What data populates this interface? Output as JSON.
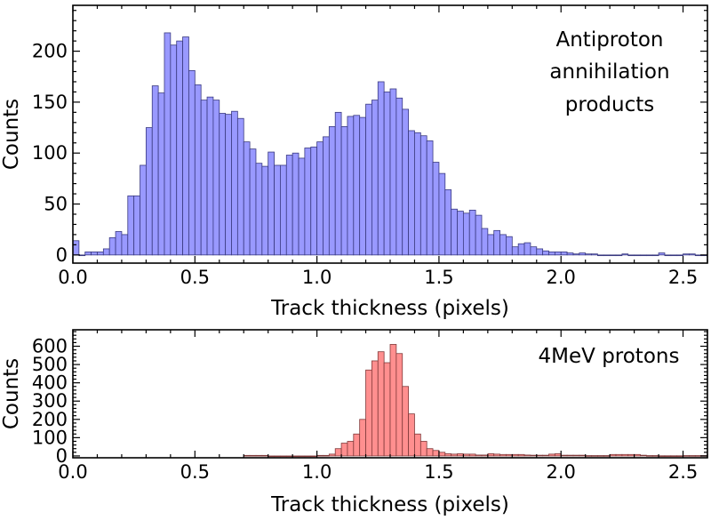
{
  "chart_data": [
    {
      "type": "bar",
      "title": "",
      "annotation_lines": [
        "Antiproton",
        "annihilation",
        "products"
      ],
      "xlabel": "Track thickness (pixels)",
      "ylabel": "Counts",
      "xlim": [
        0.0,
        2.6
      ],
      "ylim": [
        -8,
        245
      ],
      "bin_width": 0.025,
      "bar_color": "#9999ff",
      "edge_color": "#3a3a80",
      "xticks": [
        0.0,
        0.5,
        1.0,
        1.5,
        2.0,
        2.5
      ],
      "xtick_labels": [
        "0.0",
        "0.5",
        "1.0",
        "1.5",
        "2.0",
        "2.5"
      ],
      "yticks": [
        0,
        50,
        100,
        150,
        200
      ],
      "ytick_labels": [
        "0",
        "50",
        "100",
        "150",
        "200"
      ],
      "bin_starts": [
        0.0,
        0.025,
        0.05,
        0.075,
        0.1,
        0.125,
        0.15,
        0.175,
        0.2,
        0.225,
        0.25,
        0.275,
        0.3,
        0.325,
        0.35,
        0.375,
        0.4,
        0.425,
        0.45,
        0.475,
        0.5,
        0.525,
        0.55,
        0.575,
        0.6,
        0.625,
        0.65,
        0.675,
        0.7,
        0.725,
        0.75,
        0.775,
        0.8,
        0.825,
        0.85,
        0.875,
        0.9,
        0.925,
        0.95,
        0.975,
        1.0,
        1.025,
        1.05,
        1.075,
        1.1,
        1.125,
        1.15,
        1.175,
        1.2,
        1.225,
        1.25,
        1.275,
        1.3,
        1.325,
        1.35,
        1.375,
        1.4,
        1.425,
        1.45,
        1.475,
        1.5,
        1.525,
        1.55,
        1.575,
        1.6,
        1.625,
        1.65,
        1.675,
        1.7,
        1.725,
        1.75,
        1.775,
        1.8,
        1.825,
        1.85,
        1.875,
        1.9,
        1.925,
        1.95,
        1.975,
        2.0,
        2.025,
        2.05,
        2.075,
        2.1,
        2.125,
        2.15,
        2.175,
        2.2,
        2.225,
        2.25,
        2.275,
        2.3,
        2.325,
        2.35,
        2.375,
        2.4,
        2.425,
        2.45,
        2.475,
        2.5,
        2.525,
        2.55,
        2.575
      ],
      "values": [
        14,
        0,
        3,
        3,
        3,
        6,
        17,
        23,
        20,
        58,
        58,
        88,
        125,
        166,
        159,
        218,
        206,
        210,
        214,
        181,
        167,
        152,
        155,
        152,
        139,
        138,
        141,
        134,
        111,
        104,
        90,
        87,
        101,
        88,
        88,
        98,
        100,
        95,
        105,
        106,
        111,
        116,
        126,
        140,
        126,
        136,
        137,
        135,
        148,
        152,
        170,
        160,
        163,
        154,
        143,
        122,
        120,
        117,
        112,
        91,
        80,
        64,
        45,
        43,
        41,
        44,
        39,
        26,
        20,
        24,
        20,
        18,
        8,
        11,
        12,
        8,
        6,
        4,
        3,
        3,
        3,
        2,
        1,
        2,
        1,
        1,
        0,
        0,
        0,
        0,
        1,
        0,
        0,
        0,
        0,
        0,
        2,
        0,
        0,
        0,
        1,
        1,
        0,
        0
      ]
    },
    {
      "type": "bar",
      "title": "",
      "annotation_lines": [
        "4MeV protons"
      ],
      "xlabel": "Track thickness (pixels)",
      "ylabel": "Counts",
      "xlim": [
        0.0,
        2.6
      ],
      "ylim": [
        -10,
        690
      ],
      "bin_width": 0.025,
      "bar_color": "#ff8f8f",
      "edge_color": "#803a3a",
      "xticks": [
        0.0,
        0.5,
        1.0,
        1.5,
        2.0,
        2.5
      ],
      "xtick_labels": [
        "0.0",
        "0.5",
        "1.0",
        "1.5",
        "2.0",
        "2.5"
      ],
      "yticks": [
        0,
        100,
        200,
        300,
        400,
        500,
        600
      ],
      "ytick_labels": [
        "0",
        "100",
        "200",
        "300",
        "400",
        "500",
        "600"
      ],
      "bin_starts": [
        0.7,
        0.725,
        0.75,
        0.775,
        0.8,
        0.825,
        0.85,
        0.875,
        0.9,
        0.925,
        0.95,
        0.975,
        1.0,
        1.025,
        1.05,
        1.075,
        1.1,
        1.125,
        1.15,
        1.175,
        1.2,
        1.225,
        1.25,
        1.275,
        1.3,
        1.325,
        1.35,
        1.375,
        1.4,
        1.425,
        1.45,
        1.475,
        1.5,
        1.525,
        1.55,
        1.575,
        1.6,
        1.625,
        1.65,
        1.675,
        1.7,
        1.725,
        1.75,
        1.775,
        1.8,
        1.825,
        1.85,
        1.875,
        1.9,
        1.925,
        1.95,
        1.975,
        2.0,
        2.025,
        2.05,
        2.075,
        2.1,
        2.125,
        2.15,
        2.175,
        2.2,
        2.225,
        2.25,
        2.275,
        2.3,
        2.325,
        2.35,
        2.375,
        2.4,
        2.425,
        2.45,
        2.475,
        2.5,
        2.525,
        2.55,
        2.575
      ],
      "values": [
        3,
        3,
        3,
        3,
        0,
        0,
        0,
        0,
        0,
        0,
        0,
        0,
        3,
        3,
        10,
        40,
        70,
        80,
        120,
        200,
        470,
        520,
        570,
        510,
        610,
        560,
        380,
        230,
        120,
        80,
        40,
        30,
        20,
        12,
        10,
        12,
        10,
        10,
        5,
        5,
        12,
        10,
        8,
        8,
        8,
        8,
        5,
        4,
        4,
        4,
        10,
        12,
        4,
        4,
        4,
        4,
        2,
        2,
        2,
        2,
        8,
        8,
        8,
        8,
        8,
        4,
        2,
        2,
        1,
        1,
        1,
        1,
        2,
        2,
        2,
        2
      ]
    }
  ]
}
